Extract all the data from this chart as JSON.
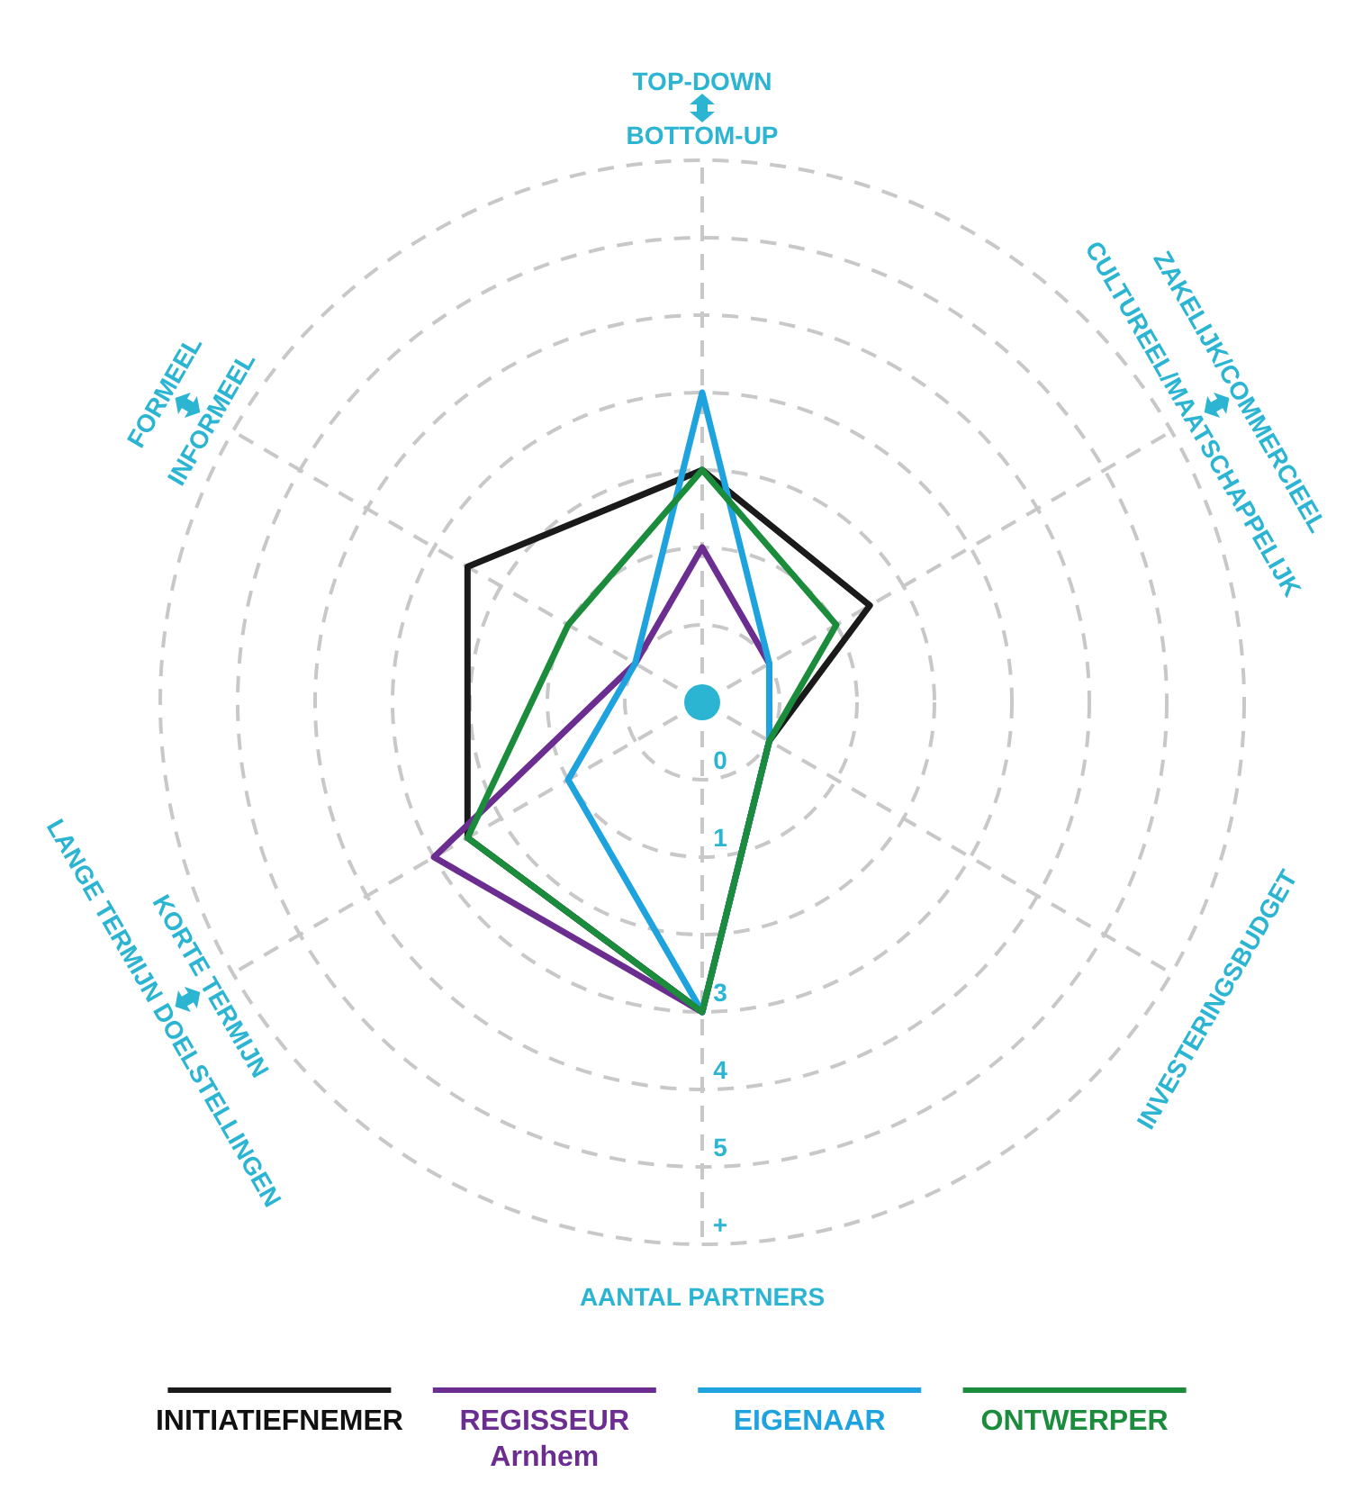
{
  "chart_data": {
    "type": "radar",
    "categories": [
      "TOP-DOWN\nBOTTOM-UP",
      "ZAKELIJK/COMMERCIEEL\nCULTUREEL/MAATSCHAPPELIJK",
      "INVESTERINGSBUDGET",
      "AANTAL PARTNERS",
      "KORTE TERMIJN\nLANGE TERMIJN DOELSTELLINGEN",
      "FORMEEL\nINFORMEEL"
    ],
    "series": [
      {
        "name": "INITIATIEFNEMER",
        "color": "#1a1a1a",
        "values": [
          2,
          1.5,
          0,
          3,
          2.5,
          2.5
        ]
      },
      {
        "name": "REGISSEUR\nArnhem",
        "color": "#6b2d8f",
        "values": [
          1,
          0,
          0,
          3,
          3,
          0
        ]
      },
      {
        "name": "EIGENAAR",
        "color": "#1ea3de",
        "values": [
          3,
          0,
          0,
          3,
          1,
          0
        ]
      },
      {
        "name": "ONTWERPER",
        "color": "#1a8c3c",
        "values": [
          2,
          1,
          0,
          3,
          2.5,
          1
        ]
      }
    ],
    "ylim": [
      -1,
      6
    ],
    "yticks": [
      0,
      1,
      3,
      4,
      5,
      {
        "value": 6,
        "label": "+"
      }
    ],
    "grid": true,
    "legend": "bottom",
    "line_style": "solid",
    "marker": "none"
  }
}
